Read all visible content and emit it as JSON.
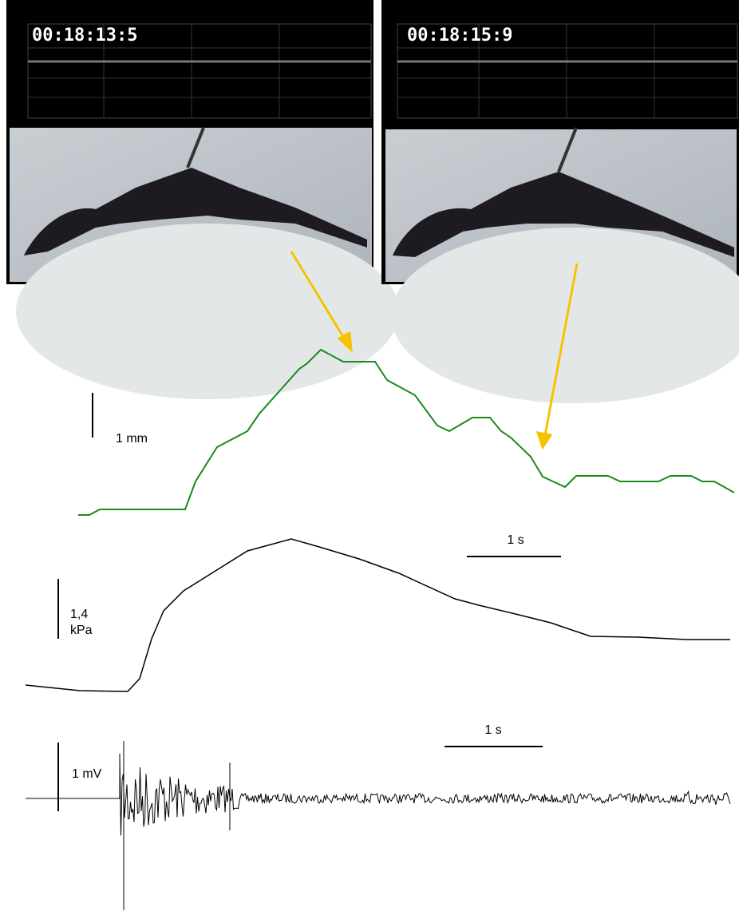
{
  "frames": [
    {
      "timestamp": "00:18:13:5"
    },
    {
      "timestamp": "00:18:15:9"
    }
  ],
  "displacement": {
    "scale_label": "1 mm",
    "time_label": "1 s"
  },
  "pressure": {
    "scale_label_value": "1,4",
    "scale_label_unit": "kPa",
    "time_label": "1 s"
  },
  "emg": {
    "scale_label": "1 mV"
  }
}
